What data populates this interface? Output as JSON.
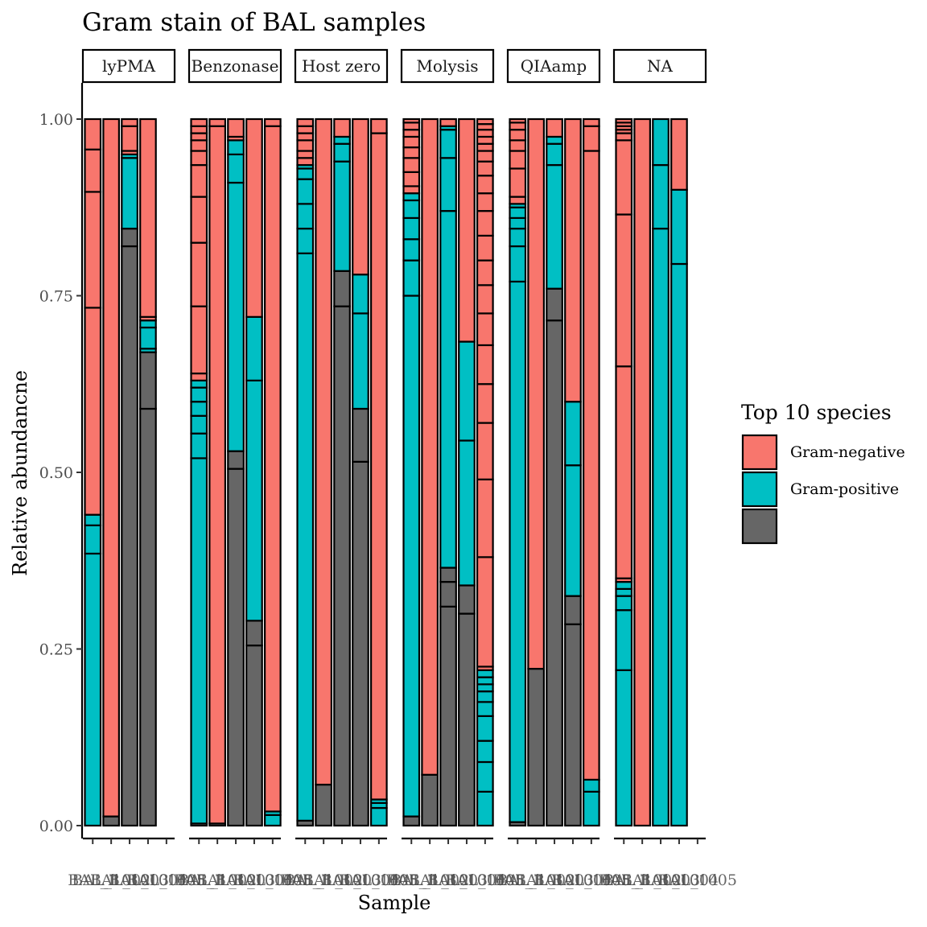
{
  "chart_data": {
    "type": "bar",
    "title": "Gram stain of BAL samples",
    "xlabel": "Sample",
    "ylabel": "Relative abundancne",
    "ylim": [
      0,
      1
    ],
    "yticks": [
      "0.00",
      "0.25",
      "0.50",
      "0.75",
      "1.00"
    ],
    "legend": {
      "title": "Top 10 species",
      "position": "right",
      "entries": [
        {
          "label": "Gram-negative",
          "color": "#F8766D",
          "key": "neg"
        },
        {
          "label": "Gram-positive",
          "color": "#00BFC4",
          "key": "pos"
        },
        {
          "label": "",
          "color": "#666666",
          "key": "na"
        }
      ]
    },
    "panels": [
      {
        "label": "lyPMA",
        "bars": [
          [
            [
              "pos",
              0.385
            ],
            [
              "pos",
              0.425
            ],
            [
              "pos",
              0.44
            ],
            [
              "neg",
              0.733
            ],
            [
              "neg",
              0.897
            ],
            [
              "neg",
              0.957
            ],
            [
              "neg",
              1.0
            ]
          ],
          [
            [
              "na",
              0.013
            ],
            [
              "neg",
              1.0
            ]
          ],
          [
            [
              "na",
              0.82
            ],
            [
              "na",
              0.845
            ],
            [
              "pos",
              0.945
            ],
            [
              "pos",
              0.95
            ],
            [
              "neg",
              0.955
            ],
            [
              "neg",
              0.99
            ],
            [
              "neg",
              1.0
            ]
          ],
          [
            [
              "na",
              0.59
            ],
            [
              "na",
              0.67
            ],
            [
              "pos",
              0.675
            ],
            [
              "pos",
              0.705
            ],
            [
              "pos",
              0.715
            ],
            [
              "neg",
              0.72
            ],
            [
              "neg",
              1.0
            ]
          ],
          [],
          []
        ]
      },
      {
        "label": "Benzonase",
        "bars": [
          [
            [
              "na",
              0.003
            ],
            [
              "pos",
              0.52
            ],
            [
              "pos",
              0.555
            ],
            [
              "pos",
              0.58
            ],
            [
              "pos",
              0.6
            ],
            [
              "pos",
              0.62
            ],
            [
              "pos",
              0.63
            ],
            [
              "neg",
              0.64
            ],
            [
              "neg",
              0.735
            ],
            [
              "neg",
              0.825
            ],
            [
              "neg",
              0.89
            ],
            [
              "neg",
              0.935
            ],
            [
              "neg",
              0.955
            ],
            [
              "neg",
              0.97
            ],
            [
              "neg",
              0.98
            ],
            [
              "neg",
              0.99
            ],
            [
              "neg",
              1.0
            ]
          ],
          [
            [
              "na",
              0.003
            ],
            [
              "neg",
              0.99
            ],
            [
              "neg",
              1.0
            ]
          ],
          [
            [
              "na",
              0.505
            ],
            [
              "na",
              0.53
            ],
            [
              "pos",
              0.91
            ],
            [
              "pos",
              0.95
            ],
            [
              "pos",
              0.97
            ],
            [
              "neg",
              0.975
            ],
            [
              "neg",
              1.0
            ]
          ],
          [
            [
              "na",
              0.255
            ],
            [
              "na",
              0.29
            ],
            [
              "pos",
              0.63
            ],
            [
              "pos",
              0.72
            ],
            [
              "neg",
              1.0
            ]
          ],
          [
            [
              "pos",
              0.015
            ],
            [
              "pos",
              0.02
            ],
            [
              "neg",
              0.99
            ],
            [
              "neg",
              1.0
            ]
          ]
        ]
      },
      {
        "label": "Host zero",
        "bars": [
          [
            [
              "na",
              0.007
            ],
            [
              "pos",
              0.81
            ],
            [
              "pos",
              0.845
            ],
            [
              "pos",
              0.88
            ],
            [
              "pos",
              0.915
            ],
            [
              "pos",
              0.93
            ],
            [
              "pos",
              0.935
            ],
            [
              "neg",
              0.945
            ],
            [
              "neg",
              0.955
            ],
            [
              "neg",
              0.97
            ],
            [
              "neg",
              0.98
            ],
            [
              "neg",
              0.99
            ],
            [
              "neg",
              1.0
            ]
          ],
          [
            [
              "na",
              0.058
            ],
            [
              "neg",
              1.0
            ]
          ],
          [
            [
              "na",
              0.735
            ],
            [
              "na",
              0.785
            ],
            [
              "pos",
              0.94
            ],
            [
              "pos",
              0.965
            ],
            [
              "pos",
              0.975
            ],
            [
              "neg",
              1.0
            ]
          ],
          [
            [
              "na",
              0.515
            ],
            [
              "na",
              0.59
            ],
            [
              "pos",
              0.725
            ],
            [
              "pos",
              0.78
            ],
            [
              "neg",
              1.0
            ]
          ],
          [
            [
              "pos",
              0.025
            ],
            [
              "pos",
              0.032
            ],
            [
              "pos",
              0.037
            ],
            [
              "neg",
              0.98
            ],
            [
              "neg",
              1.0
            ]
          ]
        ]
      },
      {
        "label": "Molysis",
        "bars": [
          [
            [
              "na",
              0.013
            ],
            [
              "pos",
              0.75
            ],
            [
              "pos",
              0.8
            ],
            [
              "pos",
              0.83
            ],
            [
              "pos",
              0.86
            ],
            [
              "pos",
              0.885
            ],
            [
              "pos",
              0.895
            ],
            [
              "neg",
              0.905
            ],
            [
              "neg",
              0.925
            ],
            [
              "neg",
              0.945
            ],
            [
              "neg",
              0.96
            ],
            [
              "neg",
              0.975
            ],
            [
              "neg",
              0.985
            ],
            [
              "neg",
              0.995
            ],
            [
              "neg",
              1.0
            ]
          ],
          [
            [
              "na",
              0.072
            ],
            [
              "neg",
              1.0
            ]
          ],
          [
            [
              "na",
              0.31
            ],
            [
              "na",
              0.345
            ],
            [
              "na",
              0.365
            ],
            [
              "pos",
              0.87
            ],
            [
              "pos",
              0.945
            ],
            [
              "pos",
              0.985
            ],
            [
              "pos",
              0.99
            ],
            [
              "neg",
              1.0
            ]
          ],
          [
            [
              "na",
              0.3
            ],
            [
              "na",
              0.34
            ],
            [
              "pos",
              0.545
            ],
            [
              "pos",
              0.685
            ],
            [
              "neg",
              1.0
            ]
          ],
          [
            [
              "pos",
              0.048
            ],
            [
              "pos",
              0.09
            ],
            [
              "pos",
              0.12
            ],
            [
              "pos",
              0.155
            ],
            [
              "pos",
              0.175
            ],
            [
              "pos",
              0.19
            ],
            [
              "pos",
              0.2
            ],
            [
              "pos",
              0.21
            ],
            [
              "pos",
              0.22
            ],
            [
              "neg",
              0.225
            ],
            [
              "neg",
              0.38
            ],
            [
              "neg",
              0.49
            ],
            [
              "neg",
              0.57
            ],
            [
              "neg",
              0.625
            ],
            [
              "neg",
              0.68
            ],
            [
              "neg",
              0.725
            ],
            [
              "neg",
              0.765
            ],
            [
              "neg",
              0.8
            ],
            [
              "neg",
              0.835
            ],
            [
              "neg",
              0.87
            ],
            [
              "neg",
              0.895
            ],
            [
              "neg",
              0.92
            ],
            [
              "neg",
              0.94
            ],
            [
              "neg",
              0.955
            ],
            [
              "neg",
              0.965
            ],
            [
              "neg",
              0.975
            ],
            [
              "neg",
              0.985
            ],
            [
              "neg",
              0.993
            ],
            [
              "neg",
              1.0
            ]
          ]
        ]
      },
      {
        "label": "QIAamp",
        "bars": [
          [
            [
              "na",
              0.005
            ],
            [
              "pos",
              0.77
            ],
            [
              "pos",
              0.82
            ],
            [
              "pos",
              0.845
            ],
            [
              "pos",
              0.86
            ],
            [
              "pos",
              0.875
            ],
            [
              "pos",
              0.88
            ],
            [
              "neg",
              0.89
            ],
            [
              "neg",
              0.93
            ],
            [
              "neg",
              0.955
            ],
            [
              "neg",
              0.97
            ],
            [
              "neg",
              0.985
            ],
            [
              "neg",
              0.995
            ],
            [
              "neg",
              1.0
            ]
          ],
          [
            [
              "na",
              0.222
            ],
            [
              "neg",
              1.0
            ]
          ],
          [
            [
              "na",
              0.715
            ],
            [
              "na",
              0.76
            ],
            [
              "pos",
              0.935
            ],
            [
              "pos",
              0.965
            ],
            [
              "pos",
              0.975
            ],
            [
              "neg",
              1.0
            ]
          ],
          [
            [
              "na",
              0.285
            ],
            [
              "na",
              0.325
            ],
            [
              "pos",
              0.51
            ],
            [
              "pos",
              0.6
            ],
            [
              "neg",
              1.0
            ]
          ],
          [
            [
              "pos",
              0.048
            ],
            [
              "pos",
              0.065
            ],
            [
              "neg",
              0.955
            ],
            [
              "neg",
              0.99
            ],
            [
              "neg",
              1.0
            ]
          ]
        ]
      },
      {
        "label": "NA",
        "bars": [
          [
            [
              "pos",
              0.22
            ],
            [
              "pos",
              0.305
            ],
            [
              "pos",
              0.325
            ],
            [
              "pos",
              0.335
            ],
            [
              "pos",
              0.345
            ],
            [
              "neg",
              0.35
            ],
            [
              "neg",
              0.65
            ],
            [
              "neg",
              0.865
            ],
            [
              "neg",
              0.97
            ],
            [
              "neg",
              0.98
            ],
            [
              "neg",
              0.985
            ],
            [
              "neg",
              0.99
            ],
            [
              "neg",
              0.995
            ],
            [
              "neg",
              1.0
            ]
          ],
          [
            [
              "neg",
              1.0
            ]
          ],
          [
            [
              "pos",
              0.845
            ],
            [
              "pos",
              0.935
            ],
            [
              "pos",
              1.0
            ]
          ],
          [
            [
              "pos",
              0.795
            ],
            [
              "pos",
              0.9
            ],
            [
              "neg",
              1.0
            ]
          ],
          []
        ]
      }
    ],
    "x_tick_labels": "BAL_... (overlapping, illegible)"
  }
}
